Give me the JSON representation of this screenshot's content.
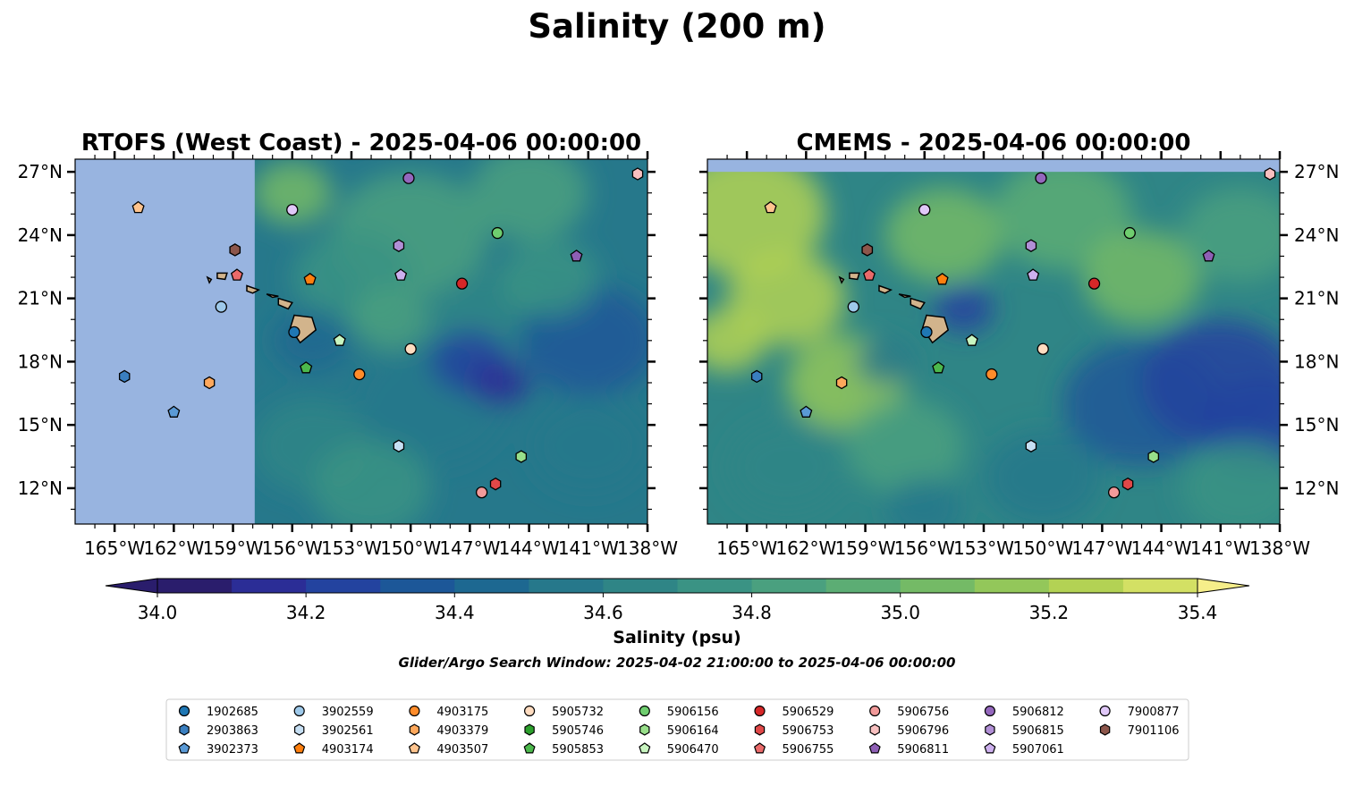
{
  "figure": {
    "title": "Salinity (200 m)",
    "colorbar": {
      "label": "Salinity (psu)",
      "min": 34.0,
      "max": 35.4,
      "step": 0.1,
      "extend": "both",
      "ticks": [
        "34.0",
        "34.2",
        "34.4",
        "34.6",
        "34.8",
        "35.0",
        "35.2",
        "35.4"
      ],
      "colors": [
        "#2a1d6c",
        "#2b2d96",
        "#23439f",
        "#1c5798",
        "#1d6891",
        "#26788b",
        "#2f8586",
        "#3a9384",
        "#4aa07f",
        "#5cad74",
        "#74ba66",
        "#93c75a",
        "#b3d254",
        "#d3e064",
        "#f6ee8a"
      ]
    },
    "search_window": "Glider/Argo Search Window: 2025-04-02 21:00:00 to 2025-04-06 00:00:00"
  },
  "chart_data": [
    {
      "type": "map",
      "title": "RTOFS (West Coast) - 2025-04-06 00:00:00",
      "lon_range": [
        -167,
        -138
      ],
      "lat_range": [
        10.3,
        27.6
      ],
      "lon_ticks": [
        "165°W",
        "162°W",
        "159°W",
        "156°W",
        "153°W",
        "150°W",
        "147°W",
        "144°W",
        "141°W",
        "138°W"
      ],
      "lat_ticks": [
        "27°N",
        "24°N",
        "21°N",
        "18°N",
        "15°N",
        "12°N"
      ],
      "ylabel_side": "left",
      "model_west_edge_lon": -157.9,
      "no_data_color": "#98b4e0",
      "land_color": "#d2b48c"
    },
    {
      "type": "map",
      "title": "CMEMS - 2025-04-06 00:00:00",
      "lon_range": [
        -167,
        -138
      ],
      "lat_range": [
        10.3,
        27.6
      ],
      "lon_ticks": [
        "165°W",
        "162°W",
        "159°W",
        "156°W",
        "153°W",
        "150°W",
        "147°W",
        "144°W",
        "141°W",
        "138°W"
      ],
      "lat_ticks": [
        "27°N",
        "24°N",
        "21°N",
        "18°N",
        "15°N",
        "12°N"
      ],
      "ylabel_side": "right",
      "model_north_edge_lat": 27.0,
      "no_data_color": "#98b4e0",
      "land_color": "#d2b48c"
    }
  ],
  "floats": [
    {
      "id": "1902685",
      "lon": -155.9,
      "lat": 19.4,
      "marker": "circle",
      "color": "#1f77b4"
    },
    {
      "id": "2903863",
      "lon": -164.5,
      "lat": 17.3,
      "marker": "hexagon",
      "color": "#3a7fc0"
    },
    {
      "id": "3902373",
      "lon": -162.0,
      "lat": 15.6,
      "marker": "pentagon",
      "color": "#5a9ad6"
    },
    {
      "id": "3902559",
      "lon": -159.6,
      "lat": 20.6,
      "marker": "circle",
      "color": "#9ec9ea"
    },
    {
      "id": "3902561",
      "lon": -150.6,
      "lat": 14.0,
      "marker": "hexagon",
      "color": "#c6dff3"
    },
    {
      "id": "4903174",
      "lon": -155.1,
      "lat": 21.9,
      "marker": "pentagon",
      "color": "#ff7f0e"
    },
    {
      "id": "4903175",
      "lon": -152.6,
      "lat": 17.4,
      "marker": "circle",
      "color": "#ff8c2a"
    },
    {
      "id": "4903379",
      "lon": -160.2,
      "lat": 17.0,
      "marker": "hexagon",
      "color": "#ffa85c"
    },
    {
      "id": "4903507",
      "lon": -163.8,
      "lat": 25.3,
      "marker": "pentagon",
      "color": "#ffc48e"
    },
    {
      "id": "5905732",
      "lon": -150.0,
      "lat": 18.6,
      "marker": "circle",
      "color": "#ffdcc0"
    },
    {
      "id": "5905746",
      "lon": -158.9,
      "lat": 23.3,
      "marker": "hexagon",
      "color": "#2ca02c"
    },
    {
      "id": "5905853",
      "lon": -155.3,
      "lat": 17.7,
      "marker": "pentagon",
      "color": "#4cb84c"
    },
    {
      "id": "5906156",
      "lon": -145.6,
      "lat": 24.1,
      "marker": "circle",
      "color": "#6fce6f"
    },
    {
      "id": "5906164",
      "lon": -144.4,
      "lat": 13.5,
      "marker": "hexagon",
      "color": "#98df8a"
    },
    {
      "id": "5906470",
      "lon": -153.6,
      "lat": 19.0,
      "marker": "pentagon",
      "color": "#c8f5c0"
    },
    {
      "id": "5906529",
      "lon": -147.4,
      "lat": 21.7,
      "marker": "circle",
      "color": "#d62728"
    },
    {
      "id": "5906753",
      "lon": -145.7,
      "lat": 12.2,
      "marker": "hexagon",
      "color": "#e04848"
    },
    {
      "id": "5906755",
      "lon": -158.8,
      "lat": 22.1,
      "marker": "pentagon",
      "color": "#ea6a6a"
    },
    {
      "id": "5906756",
      "lon": -146.4,
      "lat": 11.8,
      "marker": "circle",
      "color": "#f29a9a"
    },
    {
      "id": "5906796",
      "lon": -138.5,
      "lat": 26.9,
      "marker": "hexagon",
      "color": "#f8c0c0"
    },
    {
      "id": "5906811",
      "lon": -141.6,
      "lat": 23.0,
      "marker": "pentagon",
      "color": "#8e5fb5"
    },
    {
      "id": "5906812",
      "lon": -150.1,
      "lat": 26.7,
      "marker": "circle",
      "color": "#9467bd"
    },
    {
      "id": "5906815",
      "lon": -150.6,
      "lat": 23.5,
      "marker": "hexagon",
      "color": "#b18fd6"
    },
    {
      "id": "5907061",
      "lon": -150.5,
      "lat": 22.1,
      "marker": "pentagon",
      "color": "#cdb0ee"
    },
    {
      "id": "7900877",
      "lon": -156.0,
      "lat": 25.2,
      "marker": "circle",
      "color": "#e0c8f8"
    },
    {
      "id": "7901106",
      "lon": -158.9,
      "lat": 23.3,
      "marker": "hexagon",
      "color": "#8c564b"
    }
  ]
}
